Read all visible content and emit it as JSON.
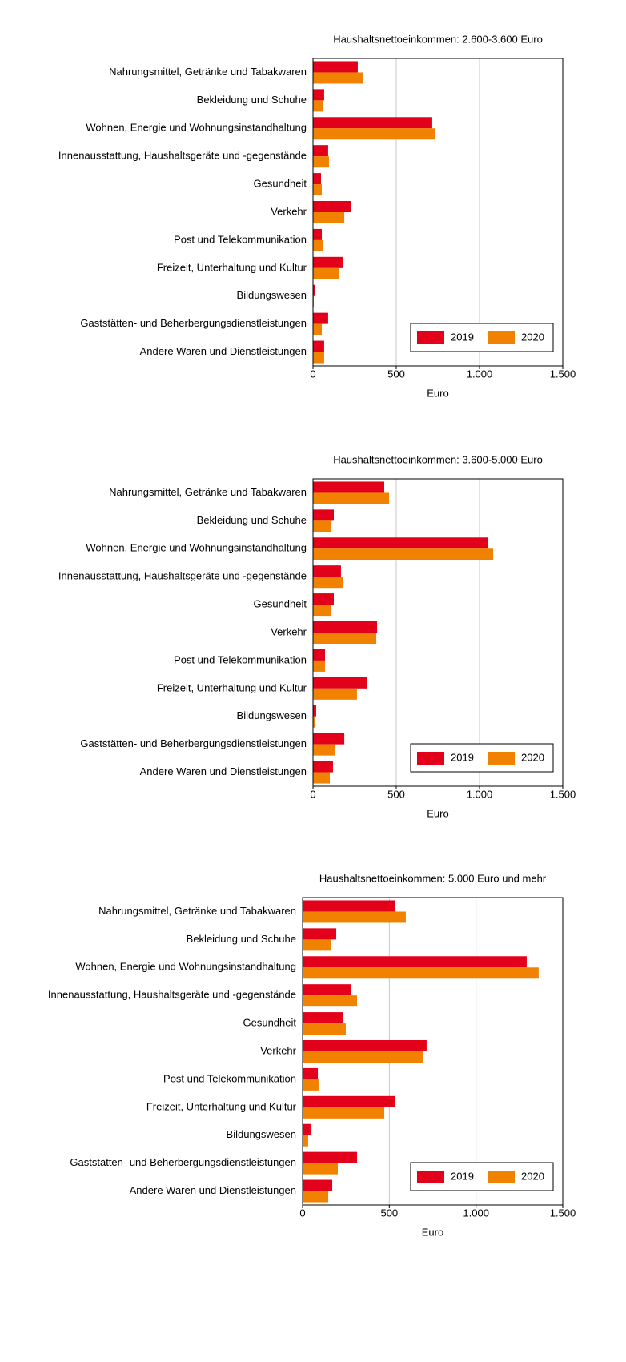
{
  "chart_data": [
    {
      "type": "bar",
      "title": "Haushaltsnettoeinkommen: 2.600-3.600 Euro",
      "xlabel": "Euro",
      "categories": [
        "Nahrungsmittel, Getränke und Tabakwaren",
        "Bekleidung und Schuhe",
        "Wohnen, Energie und Wohnungsinstandhaltung",
        "Innenausstattung, Haushaltsgeräte und -gegenstände",
        "Gesundheit",
        "Verkehr",
        "Post und Telekommunikation",
        "Freizeit, Unterhaltung und Kultur",
        "Bildungswesen",
        "Gaststätten- und Beherbergungsdienstleistungen",
        "Andere Waren und Dienstleistungen"
      ],
      "series": [
        {
          "name": "2019",
          "color": "#e2001a",
          "values": [
            269,
            67,
            716,
            91,
            48,
            226,
            53,
            178,
            10,
            91,
            67
          ]
        },
        {
          "name": "2020",
          "color": "#f08200",
          "values": [
            298,
            58,
            731,
            96,
            53,
            188,
            58,
            154,
            5,
            53,
            67
          ]
        }
      ],
      "xlim": [
        0,
        1500
      ],
      "xticks": [
        0,
        500,
        {
          "value": 1000,
          "label": "1.000"
        },
        {
          "value": 1500,
          "label": "1.500"
        }
      ],
      "grid": true,
      "legend": "lower right"
    },
    {
      "type": "bar",
      "title": "Haushaltsnettoeinkommen: 3.600-5.000 Euro",
      "xlabel": "Euro",
      "categories": [
        "Nahrungsmittel, Getränke und Tabakwaren",
        "Bekleidung und Schuhe",
        "Wohnen, Energie und Wohnungsinstandhaltung",
        "Innenausstattung, Haushaltsgeräte und -gegenstände",
        "Gesundheit",
        "Verkehr",
        "Post und Telekommunikation",
        "Freizeit, Unterhaltung und Kultur",
        "Bildungswesen",
        "Gaststätten- und Beherbergungsdienstleistungen",
        "Andere Waren und Dienstleistungen"
      ],
      "series": [
        {
          "name": "2019",
          "color": "#e2001a",
          "values": [
            428,
            125,
            1053,
            168,
            125,
            385,
            72,
            327,
            19,
            188,
            120
          ]
        },
        {
          "name": "2020",
          "color": "#f08200",
          "values": [
            457,
            111,
            1082,
            183,
            111,
            380,
            72,
            264,
            10,
            130,
            101
          ]
        }
      ],
      "xlim": [
        0,
        1500
      ],
      "xticks": [
        0,
        500,
        {
          "value": 1000,
          "label": "1.000"
        },
        {
          "value": 1500,
          "label": "1.500"
        }
      ],
      "grid": true,
      "legend": "lower right"
    },
    {
      "type": "bar",
      "title": "Haushaltsnettoeinkommen: 5.000 Euro und mehr",
      "xlabel": "Euro",
      "categories": [
        "Nahrungsmittel, Getränke und Tabakwaren",
        "Bekleidung und Schuhe",
        "Wohnen, Energie und Wohnungsinstandhaltung",
        "Innenausstattung, Haushaltsgeräte und -gegenstände",
        "Gesundheit",
        "Verkehr",
        "Post und Telekommunikation",
        "Freizeit, Unterhaltung und Kultur",
        "Bildungswesen",
        "Gaststätten- und Beherbergungsdienstleistungen",
        "Andere Waren und Dienstleistungen"
      ],
      "series": [
        {
          "name": "2019",
          "color": "#e2001a",
          "values": [
            535,
            194,
            1292,
            277,
            231,
            715,
            88,
            535,
            51,
            314,
            171
          ]
        },
        {
          "name": "2020",
          "color": "#f08200",
          "values": [
            595,
            166,
            1361,
            314,
            249,
            692,
            92,
            471,
            32,
            203,
            148
          ]
        }
      ],
      "xlim": [
        0,
        1500
      ],
      "xticks": [
        0,
        500,
        {
          "value": 1000,
          "label": "1.000"
        },
        {
          "value": 1500,
          "label": "1.500"
        }
      ],
      "grid": true,
      "legend": "lower right"
    }
  ]
}
